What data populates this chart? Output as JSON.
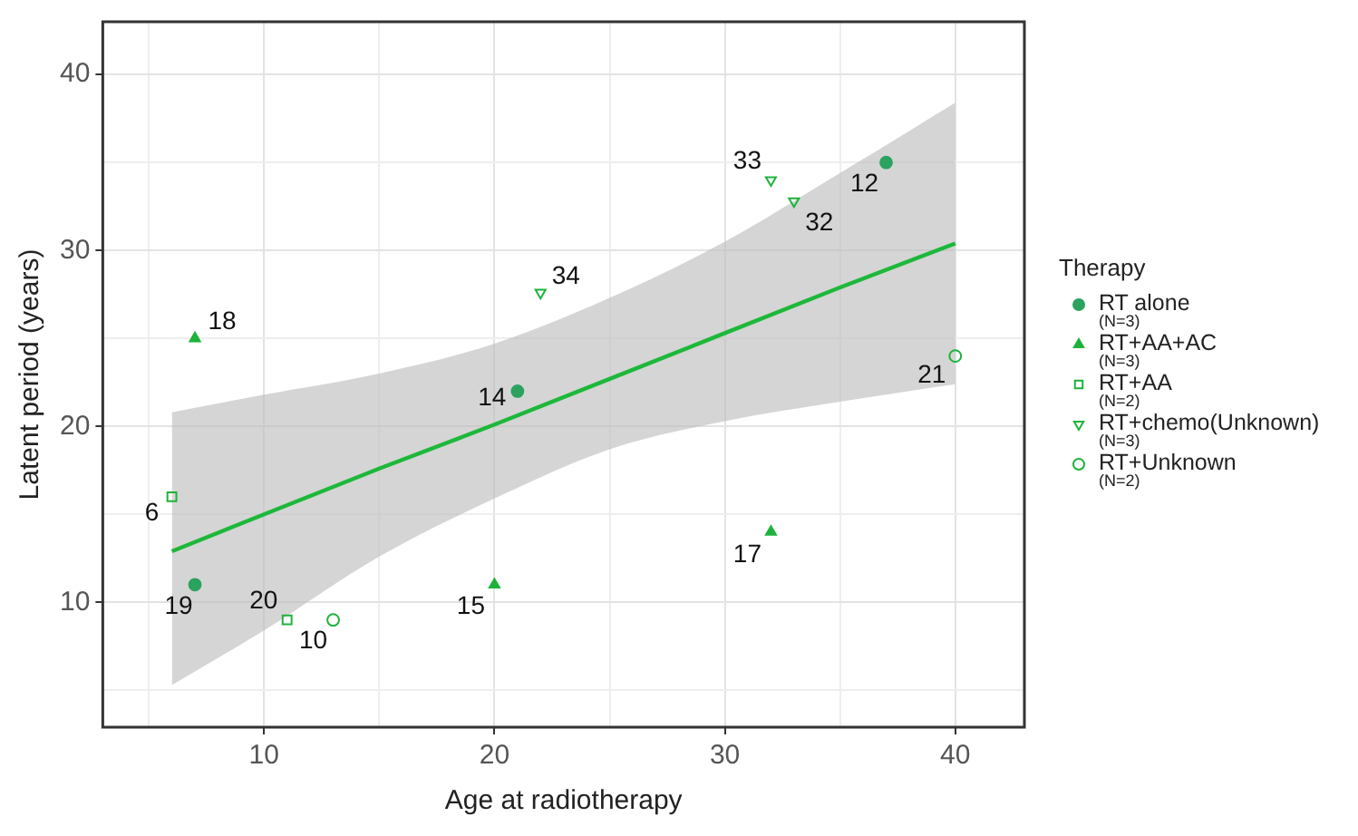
{
  "chart_data": {
    "type": "scatter",
    "xlabel": "Age at radiotherapy",
    "ylabel": "Latent period (years)",
    "legend_title": "Therapy",
    "legend": "right",
    "grid": true,
    "xlim": [
      3,
      43
    ],
    "xticks": [
      {
        "value": 5,
        "label": null
      },
      10,
      {
        "value": 15,
        "label": null
      },
      20,
      {
        "value": 25,
        "label": null
      },
      30,
      {
        "value": 35,
        "label": null
      },
      40
    ],
    "ylim": [
      2.9,
      43
    ],
    "yticks": [
      {
        "value": 5,
        "label": null
      },
      10,
      {
        "value": 15,
        "label": null
      },
      20,
      {
        "value": 25,
        "label": null
      },
      30,
      {
        "value": 35,
        "label": null
      },
      40
    ],
    "series": [
      {
        "name": "RT alone\n(N=3)",
        "marker": "circle",
        "color": "#2ca25f",
        "x": [
          7,
          21,
          37
        ],
        "values": [
          11,
          22,
          35
        ]
      },
      {
        "name": "RT+AA+AC\n(N=3)",
        "marker": "triangle",
        "color": "#1db33a",
        "x": [
          7,
          20,
          32
        ],
        "values": [
          25,
          11,
          14
        ]
      },
      {
        "name": "RT+AA\n(N=2)",
        "marker": "square-open",
        "color": "#1db33a",
        "x": [
          6,
          11
        ],
        "values": [
          16,
          9
        ]
      },
      {
        "name": "RT+chemo(Unknown)\n(N=3)",
        "marker": "triangle-down-open",
        "color": "#1db33a",
        "x": [
          22,
          32,
          33
        ],
        "values": [
          27.6,
          34,
          32.8
        ]
      },
      {
        "name": "RT+Unknown\n(N=2)",
        "marker": "circle-open",
        "color": "#1db33a",
        "x": [
          13,
          40
        ],
        "values": [
          9,
          24
        ]
      },
      {
        "type": "line",
        "color": "#1db83a",
        "marker": "none",
        "x": [
          6,
          10,
          15,
          20,
          25,
          30,
          35,
          40
        ],
        "values": [
          12.9,
          15.0,
          17.6,
          20.1,
          22.7,
          25.3,
          27.9,
          30.4
        ],
        "lower": [
          5.3,
          8.4,
          12.6,
          15.9,
          18.7,
          20.3,
          21.4,
          22.4
        ],
        "upper": [
          20.8,
          21.8,
          23.0,
          24.7,
          27.3,
          30.5,
          34.4,
          38.4
        ]
      }
    ],
    "annotations": [
      {
        "text": "19",
        "x": 7,
        "y": 11
      },
      {
        "text": "14",
        "x": 21,
        "y": 22
      },
      {
        "text": "12",
        "x": 37,
        "y": 35
      },
      {
        "text": "18",
        "x": 7,
        "y": 25
      },
      {
        "text": "15",
        "x": 20,
        "y": 11
      },
      {
        "text": "17",
        "x": 32,
        "y": 14
      },
      {
        "text": "6",
        "x": 6,
        "y": 16
      },
      {
        "text": "20",
        "x": 11,
        "y": 9
      },
      {
        "text": "34",
        "x": 22,
        "y": 27.6
      },
      {
        "text": "33",
        "x": 32,
        "y": 34
      },
      {
        "text": "32",
        "x": 33,
        "y": 32.8
      },
      {
        "text": "10",
        "x": 13,
        "y": 9
      },
      {
        "text": "21",
        "x": 40,
        "y": 24
      }
    ]
  }
}
